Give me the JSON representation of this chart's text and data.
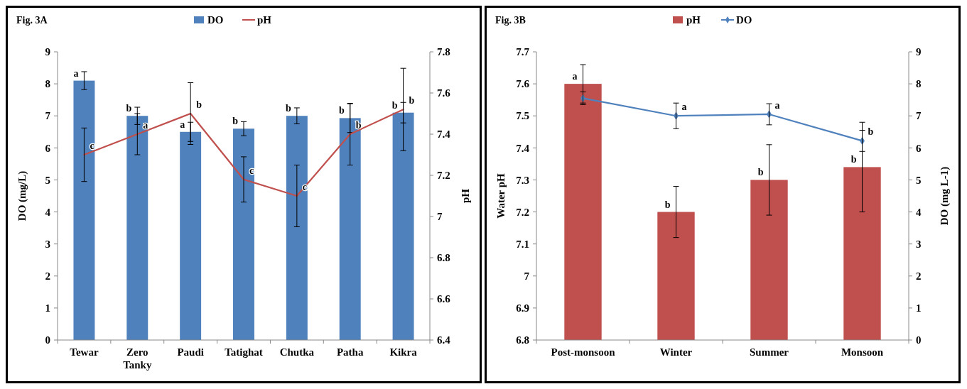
{
  "chart_data": [
    {
      "type": "bar",
      "title": "Fig. 3A",
      "ylabel": "DO (mg/L)",
      "y2label": "pH",
      "categories": [
        "Tewar",
        "Zero Tanky",
        "Paudi",
        "Tatighat",
        "Chutka",
        "Patha",
        "Kikra"
      ],
      "series": [
        {
          "name": "DO",
          "color": "#4f81bd",
          "values": [
            8.1,
            7.0,
            6.5,
            6.6,
            7.0,
            6.93,
            7.1
          ],
          "errors": [
            0.28,
            0.27,
            0.3,
            0.22,
            0.25,
            0.45,
            0.32
          ],
          "value_labels": [
            "a",
            "b",
            "a",
            "b",
            "b",
            "b",
            "b"
          ]
        },
        {
          "name": "pH",
          "type": "line",
          "axis": "y2",
          "color": "#c0504d",
          "values": [
            7.3,
            7.4,
            7.5,
            7.18,
            7.1,
            7.4,
            7.52
          ],
          "errors": [
            0.13,
            0.1,
            0.15,
            0.11,
            0.15,
            0.15,
            0.2
          ],
          "value_labels": [
            "c",
            "a",
            "b",
            "c",
            "c",
            "b",
            "b"
          ]
        }
      ],
      "ylim": [
        0,
        9
      ],
      "yticks": [
        0,
        1,
        2,
        3,
        4,
        5,
        6,
        7,
        8,
        9
      ],
      "y2lim": [
        6.4,
        7.8
      ],
      "y2ticks": [
        6.4,
        6.6,
        6.8,
        7,
        7.2,
        7.4,
        7.6,
        7.8
      ],
      "legend": "top",
      "grid": false
    },
    {
      "type": "bar",
      "title": "Fig. 3B",
      "ylabel": "Water pH",
      "y2label": "DO (mg L-1)",
      "categories": [
        "Post-monsoon",
        "Winter",
        "Summer",
        "Monsoon"
      ],
      "series": [
        {
          "name": "pH",
          "color": "#c0504d",
          "values": [
            7.6,
            7.2,
            7.3,
            7.34
          ],
          "errors": [
            0.06,
            0.08,
            0.11,
            0.14
          ],
          "value_labels": [
            "a",
            "b",
            "b",
            "b"
          ]
        },
        {
          "name": "DO",
          "type": "line",
          "axis": "y2",
          "color": "#4f81bd",
          "values": [
            7.55,
            7.0,
            7.05,
            6.22
          ],
          "errors": [
            0.2,
            0.4,
            0.33,
            0.33
          ],
          "value_labels": [
            null,
            "a",
            "a",
            "b"
          ]
        }
      ],
      "ylim": [
        6.8,
        7.7
      ],
      "yticks": [
        6.8,
        6.9,
        7,
        7.1,
        7.2,
        7.3,
        7.4,
        7.5,
        7.6,
        7.7
      ],
      "y2lim": [
        0,
        9
      ],
      "y2ticks": [
        0,
        1,
        2,
        3,
        4,
        5,
        6,
        7,
        8,
        9
      ],
      "legend": "top",
      "grid": false,
      "marker": "diamond"
    }
  ]
}
